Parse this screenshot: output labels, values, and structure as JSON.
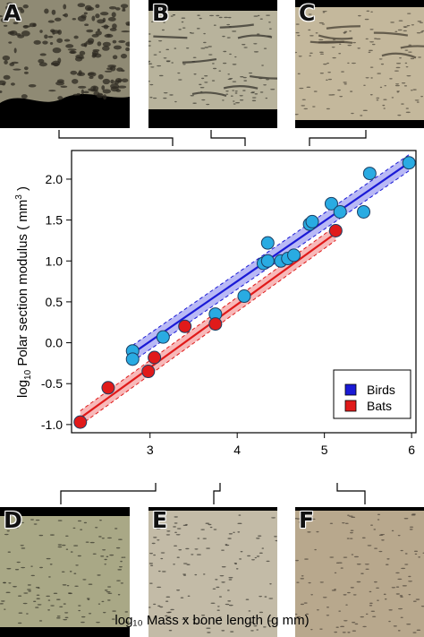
{
  "panels": [
    {
      "letter": "A",
      "fill": "#8f8a74",
      "dot": "#2d2a22"
    },
    {
      "letter": "B",
      "fill": "#b8b39c",
      "dot": "#3c3a32"
    },
    {
      "letter": "C",
      "fill": "#c4b89c",
      "dot": "#4d463a"
    },
    {
      "letter": "D",
      "fill": "#a9a886",
      "dot": "#34332a"
    },
    {
      "letter": "E",
      "fill": "#c3bba7",
      "dot": "#3a3730"
    },
    {
      "letter": "F",
      "fill": "#b8a88d",
      "dot": "#4a4238"
    }
  ],
  "x_axis_title": "log₁₀ Mass x bone length (g mm)",
  "colors": {
    "birds": "#1a1ad6",
    "birds_point": "#29abe2",
    "bats": "#e01a1a"
  },
  "chart_data": {
    "type": "scatter",
    "xlim": [
      2.1,
      6.05
    ],
    "ylim": [
      -1.1,
      2.35
    ],
    "x_ticks": [
      3,
      4,
      5,
      6
    ],
    "y_ticks": [
      -1.0,
      -0.5,
      0.0,
      0.5,
      1.0,
      1.5,
      2.0
    ],
    "y_tick_labels": [
      "-1.0",
      "-0.5",
      "0.0",
      "0.5",
      "1.0",
      "1.5",
      "2.0"
    ],
    "ylabel_main": "log",
    "ylabel_sub": "10",
    "ylabel_rest": " Polar section modulus ( mm",
    "ylabel_sup": "3",
    "ylabel_end": " )",
    "legend_position": "bottom-right",
    "series": [
      {
        "name": "Birds",
        "points": [
          [
            2.8,
            -0.1
          ],
          [
            2.8,
            -0.2
          ],
          [
            3.15,
            0.07
          ],
          [
            3.75,
            0.35
          ],
          [
            4.08,
            0.57
          ],
          [
            4.3,
            0.97
          ],
          [
            4.35,
            1.0
          ],
          [
            4.35,
            1.22
          ],
          [
            4.5,
            1.0
          ],
          [
            4.58,
            1.03
          ],
          [
            4.65,
            1.07
          ],
          [
            4.83,
            1.45
          ],
          [
            4.86,
            1.48
          ],
          [
            5.08,
            1.7
          ],
          [
            5.18,
            1.6
          ],
          [
            5.45,
            1.6
          ],
          [
            5.52,
            2.07
          ],
          [
            5.97,
            2.2
          ]
        ],
        "fit": [
          [
            2.8,
            -0.13
          ],
          [
            5.97,
            2.2
          ]
        ]
      },
      {
        "name": "Bats",
        "points": [
          [
            2.2,
            -0.97
          ],
          [
            2.52,
            -0.55
          ],
          [
            2.98,
            -0.35
          ],
          [
            3.05,
            -0.18
          ],
          [
            3.4,
            0.2
          ],
          [
            3.75,
            0.23
          ],
          [
            5.13,
            1.37
          ]
        ],
        "fit": [
          [
            2.2,
            -0.92
          ],
          [
            5.13,
            1.34
          ]
        ]
      }
    ]
  }
}
